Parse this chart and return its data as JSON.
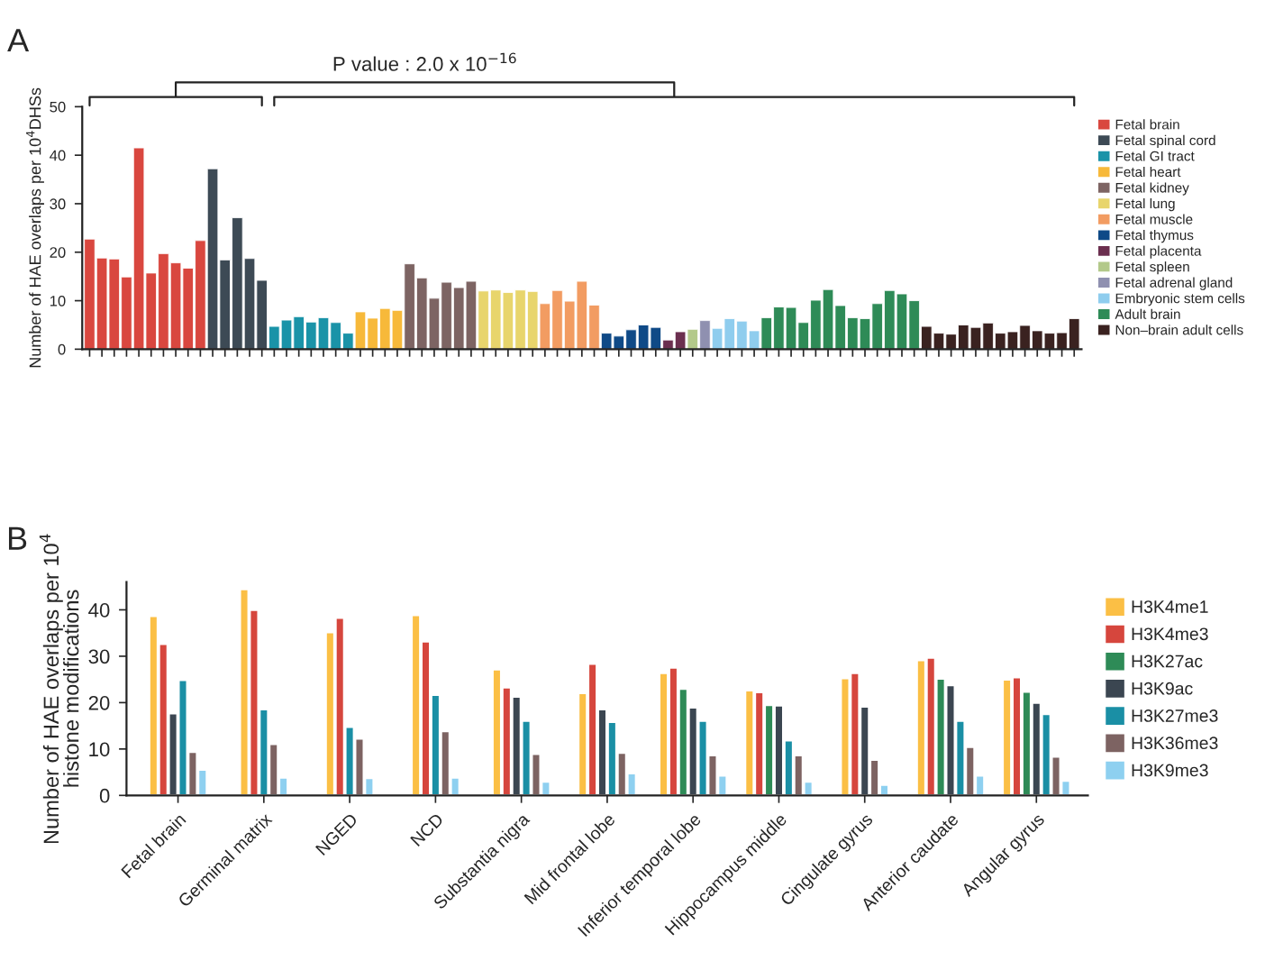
{
  "chart_data": [
    {
      "type": "bar",
      "stacked": true,
      "ylabel": "Number of HAE overlaps per 10$^{4}$DHSs",
      "ylim": [
        0,
        50
      ],
      "yticks": [
        0,
        10,
        20,
        30,
        40,
        50
      ],
      "legend": "right",
      "annotations": [
        "A",
        "P value : 2.0 x 10$^{−16}$"
      ],
      "categories": [
        null,
        null,
        null,
        null,
        null,
        null,
        null,
        null,
        null,
        null,
        null,
        null,
        null,
        null,
        null,
        null,
        null,
        null,
        null,
        null,
        null,
        null,
        null,
        null,
        null,
        null,
        null,
        null,
        null,
        null,
        null,
        null,
        null,
        null,
        null,
        null,
        null,
        null,
        null,
        null,
        null,
        null,
        null,
        null,
        null,
        null,
        null,
        null,
        null,
        null,
        null,
        null,
        null,
        null,
        null,
        null,
        null,
        null,
        null,
        null,
        null,
        null,
        null,
        null,
        null,
        null,
        null,
        null,
        null,
        null,
        null,
        null,
        null,
        null,
        null,
        null,
        null,
        null,
        null,
        null,
        null
      ],
      "series": [
        {
          "name": "Fetal brain",
          "color": "#d9473f",
          "values": [
            22.7,
            18.8,
            18.6,
            14.9,
            41.5,
            15.7,
            19.7,
            17.8,
            16.7,
            22.4,
            null,
            null,
            null,
            null,
            null,
            null,
            null,
            null,
            null,
            null,
            null,
            null,
            null,
            null,
            null,
            null,
            null,
            null,
            null,
            null,
            null,
            null,
            null,
            null,
            null,
            null,
            null,
            null,
            null,
            null,
            null,
            null,
            null,
            null,
            null,
            null,
            null,
            null,
            null,
            null,
            null,
            null,
            null,
            null,
            null,
            null,
            null,
            null,
            null,
            null,
            null,
            null,
            null,
            null,
            null,
            null,
            null,
            null,
            null,
            null,
            null,
            null,
            null,
            null,
            null,
            null,
            null,
            null,
            null,
            null,
            null
          ]
        },
        {
          "name": "Fetal spinal cord",
          "color": "#3d4a55",
          "values": [
            null,
            null,
            null,
            null,
            null,
            null,
            null,
            null,
            null,
            null,
            37.2,
            18.4,
            27.1,
            18.7,
            14.2,
            null,
            null,
            null,
            null,
            null,
            null,
            null,
            null,
            null,
            null,
            null,
            null,
            null,
            null,
            null,
            null,
            null,
            null,
            null,
            null,
            null,
            null,
            null,
            null,
            null,
            null,
            null,
            null,
            null,
            null,
            null,
            null,
            null,
            null,
            null,
            null,
            null,
            null,
            null,
            null,
            null,
            null,
            null,
            null,
            null,
            null,
            null,
            null,
            null,
            null,
            null,
            null,
            null,
            null,
            null,
            null,
            null,
            null,
            null,
            null,
            null,
            null,
            null,
            null,
            null,
            null
          ]
        },
        {
          "name": "Fetal GI tract",
          "color": "#1a93a8",
          "values": [
            null,
            null,
            null,
            null,
            null,
            null,
            null,
            null,
            null,
            null,
            null,
            null,
            null,
            null,
            null,
            4.7,
            6.0,
            6.7,
            5.6,
            6.5,
            5.5,
            3.3,
            null,
            null,
            null,
            null,
            null,
            null,
            null,
            null,
            null,
            null,
            null,
            null,
            null,
            null,
            null,
            null,
            null,
            null,
            null,
            null,
            null,
            null,
            null,
            null,
            null,
            null,
            null,
            null,
            null,
            null,
            null,
            null,
            null,
            null,
            null,
            null,
            null,
            null,
            null,
            null,
            null,
            null,
            null,
            null,
            null,
            null,
            null,
            null,
            null,
            null,
            null,
            null,
            null,
            null,
            null,
            null,
            null,
            null,
            null
          ]
        },
        {
          "name": "Fetal heart",
          "color": "#f7b93a",
          "values": [
            null,
            null,
            null,
            null,
            null,
            null,
            null,
            null,
            null,
            null,
            null,
            null,
            null,
            null,
            null,
            null,
            null,
            null,
            null,
            null,
            null,
            null,
            7.7,
            6.4,
            8.4,
            8.0,
            null,
            null,
            null,
            null,
            null,
            null,
            null,
            null,
            null,
            null,
            null,
            null,
            null,
            null,
            null,
            null,
            null,
            null,
            null,
            null,
            null,
            null,
            null,
            null,
            null,
            null,
            null,
            null,
            null,
            null,
            null,
            null,
            null,
            null,
            null,
            null,
            null,
            null,
            null,
            null,
            null,
            null,
            null,
            null,
            null,
            null,
            null,
            null,
            null,
            null,
            null,
            null,
            null,
            null,
            null
          ]
        },
        {
          "name": "Fetal kidney",
          "color": "#7d6463",
          "values": [
            null,
            null,
            null,
            null,
            null,
            null,
            null,
            null,
            null,
            null,
            null,
            null,
            null,
            null,
            null,
            null,
            null,
            null,
            null,
            null,
            null,
            null,
            null,
            null,
            null,
            null,
            17.6,
            14.7,
            10.5,
            13.8,
            12.7,
            14.0,
            null,
            null,
            null,
            null,
            null,
            null,
            null,
            null,
            null,
            null,
            null,
            null,
            null,
            null,
            null,
            null,
            null,
            null,
            null,
            null,
            null,
            null,
            null,
            null,
            null,
            null,
            null,
            null,
            null,
            null,
            null,
            null,
            null,
            null,
            null,
            null,
            null,
            null,
            null,
            null,
            null,
            null,
            null,
            null,
            null,
            null,
            null,
            null,
            null
          ]
        },
        {
          "name": "Fetal lung",
          "color": "#e8d56c",
          "values": [
            null,
            null,
            null,
            null,
            null,
            null,
            null,
            null,
            null,
            null,
            null,
            null,
            null,
            null,
            null,
            null,
            null,
            null,
            null,
            null,
            null,
            null,
            null,
            null,
            null,
            null,
            null,
            null,
            null,
            null,
            null,
            null,
            12.0,
            12.2,
            11.7,
            12.2,
            11.9,
            null,
            null,
            null,
            null,
            null,
            null,
            null,
            null,
            null,
            null,
            null,
            null,
            null,
            null,
            null,
            null,
            null,
            null,
            null,
            null,
            null,
            null,
            null,
            null,
            null,
            null,
            null,
            null,
            null,
            null,
            null,
            null,
            null,
            null,
            null,
            null,
            null,
            null,
            null,
            null,
            null,
            null,
            null,
            null
          ]
        },
        {
          "name": "Fetal muscle",
          "color": "#f29c62",
          "values": [
            null,
            null,
            null,
            null,
            null,
            null,
            null,
            null,
            null,
            null,
            null,
            null,
            null,
            null,
            null,
            null,
            null,
            null,
            null,
            null,
            null,
            null,
            null,
            null,
            null,
            null,
            null,
            null,
            null,
            null,
            null,
            null,
            null,
            null,
            null,
            null,
            null,
            9.4,
            12.1,
            9.9,
            14.0,
            9.1,
            null,
            null,
            null,
            null,
            null,
            null,
            null,
            null,
            null,
            null,
            null,
            null,
            null,
            null,
            null,
            null,
            null,
            null,
            null,
            null,
            null,
            null,
            null,
            null,
            null,
            null,
            null,
            null,
            null,
            null,
            null,
            null,
            null,
            null,
            null,
            null,
            null,
            null,
            null
          ]
        },
        {
          "name": "Fetal thymus",
          "color": "#0f4a87",
          "values": [
            null,
            null,
            null,
            null,
            null,
            null,
            null,
            null,
            null,
            null,
            null,
            null,
            null,
            null,
            null,
            null,
            null,
            null,
            null,
            null,
            null,
            null,
            null,
            null,
            null,
            null,
            null,
            null,
            null,
            null,
            null,
            null,
            null,
            null,
            null,
            null,
            null,
            null,
            null,
            null,
            null,
            null,
            3.3,
            2.7,
            4.0,
            5.0,
            4.5,
            null,
            null,
            null,
            null,
            null,
            null,
            null,
            null,
            null,
            null,
            null,
            null,
            null,
            null,
            null,
            null,
            null,
            null,
            null,
            null,
            null,
            null,
            null,
            null,
            null,
            null,
            null,
            null,
            null,
            null,
            null,
            null,
            null,
            null
          ]
        },
        {
          "name": "Fetal placenta",
          "color": "#6b2f4f",
          "values": [
            null,
            null,
            null,
            null,
            null,
            null,
            null,
            null,
            null,
            null,
            null,
            null,
            null,
            null,
            null,
            null,
            null,
            null,
            null,
            null,
            null,
            null,
            null,
            null,
            null,
            null,
            null,
            null,
            null,
            null,
            null,
            null,
            null,
            null,
            null,
            null,
            null,
            null,
            null,
            null,
            null,
            null,
            null,
            null,
            null,
            null,
            null,
            1.9,
            3.6,
            null,
            null,
            null,
            null,
            null,
            null,
            null,
            null,
            null,
            null,
            null,
            null,
            null,
            null,
            null,
            null,
            null,
            null,
            null,
            null,
            null,
            null,
            null,
            null,
            null,
            null,
            null,
            null,
            null,
            null,
            null,
            null
          ]
        },
        {
          "name": "Fetal spleen",
          "color": "#b3c98a",
          "values": [
            null,
            null,
            null,
            null,
            null,
            null,
            null,
            null,
            null,
            null,
            null,
            null,
            null,
            null,
            null,
            null,
            null,
            null,
            null,
            null,
            null,
            null,
            null,
            null,
            null,
            null,
            null,
            null,
            null,
            null,
            null,
            null,
            null,
            null,
            null,
            null,
            null,
            null,
            null,
            null,
            null,
            null,
            null,
            null,
            null,
            null,
            null,
            null,
            null,
            4.1,
            null,
            null,
            null,
            null,
            null,
            null,
            null,
            null,
            null,
            null,
            null,
            null,
            null,
            null,
            null,
            null,
            null,
            null,
            null,
            null,
            null,
            null,
            null,
            null,
            null,
            null,
            null,
            null,
            null,
            null,
            null
          ]
        },
        {
          "name": "Fetal adrenal gland",
          "color": "#8f90b0",
          "values": [
            null,
            null,
            null,
            null,
            null,
            null,
            null,
            null,
            null,
            null,
            null,
            null,
            null,
            null,
            null,
            null,
            null,
            null,
            null,
            null,
            null,
            null,
            null,
            null,
            null,
            null,
            null,
            null,
            null,
            null,
            null,
            null,
            null,
            null,
            null,
            null,
            null,
            null,
            null,
            null,
            null,
            null,
            null,
            null,
            null,
            null,
            null,
            null,
            null,
            null,
            5.9,
            null,
            null,
            null,
            null,
            null,
            null,
            null,
            null,
            null,
            null,
            null,
            null,
            null,
            null,
            null,
            null,
            null,
            null,
            null,
            null,
            null,
            null,
            null,
            null,
            null,
            null,
            null,
            null,
            null,
            null
          ]
        },
        {
          "name": "Embryonic stem cells",
          "color": "#8fcdee",
          "values": [
            null,
            null,
            null,
            null,
            null,
            null,
            null,
            null,
            null,
            null,
            null,
            null,
            null,
            null,
            null,
            null,
            null,
            null,
            null,
            null,
            null,
            null,
            null,
            null,
            null,
            null,
            null,
            null,
            null,
            null,
            null,
            null,
            null,
            null,
            null,
            null,
            null,
            null,
            null,
            null,
            null,
            null,
            null,
            null,
            null,
            null,
            null,
            null,
            null,
            null,
            null,
            4.3,
            6.3,
            5.8,
            3.8,
            null,
            null,
            null,
            null,
            null,
            null,
            null,
            null,
            null,
            null,
            null,
            null,
            null,
            null,
            null,
            null,
            null,
            null,
            null,
            null,
            null,
            null,
            null,
            null,
            null,
            null
          ]
        },
        {
          "name": "Adult brain",
          "color": "#2e8b57",
          "values": [
            null,
            null,
            null,
            null,
            null,
            null,
            null,
            null,
            null,
            null,
            null,
            null,
            null,
            null,
            null,
            null,
            null,
            null,
            null,
            null,
            null,
            null,
            null,
            null,
            null,
            null,
            null,
            null,
            null,
            null,
            null,
            null,
            null,
            null,
            null,
            null,
            null,
            null,
            null,
            null,
            null,
            null,
            null,
            null,
            null,
            null,
            null,
            null,
            null,
            null,
            null,
            null,
            null,
            null,
            null,
            6.5,
            8.7,
            8.6,
            5.5,
            10.1,
            12.3,
            9.0,
            6.5,
            6.3,
            9.4,
            12.1,
            11.4,
            10.0,
            null,
            null,
            null,
            null,
            null,
            null,
            null,
            null,
            null,
            null,
            null,
            null,
            null
          ]
        },
        {
          "name": "Non–brain adult cells",
          "color": "#3a2220",
          "values": [
            null,
            null,
            null,
            null,
            null,
            null,
            null,
            null,
            null,
            null,
            null,
            null,
            null,
            null,
            null,
            null,
            null,
            null,
            null,
            null,
            null,
            null,
            null,
            null,
            null,
            null,
            null,
            null,
            null,
            null,
            null,
            null,
            null,
            null,
            null,
            null,
            null,
            null,
            null,
            null,
            null,
            null,
            null,
            null,
            null,
            null,
            null,
            null,
            null,
            null,
            null,
            null,
            null,
            null,
            null,
            null,
            null,
            null,
            null,
            null,
            null,
            null,
            null,
            null,
            null,
            null,
            null,
            null,
            4.7,
            3.3,
            3.1,
            5.0,
            4.5,
            5.4,
            3.3,
            3.6,
            4.9,
            3.8,
            3.3,
            3.4,
            6.3
          ]
        }
      ]
    },
    {
      "type": "bar",
      "ylabel": "Number of HAE overlaps per 10$^{4}$\nhistone modifications",
      "ylim": [
        0,
        46
      ],
      "yticks": [
        0,
        10,
        20,
        30,
        40
      ],
      "legend": "right",
      "annotations": [
        "B"
      ],
      "categories": [
        "Fetal brain",
        "Germinal matrix",
        "NGED",
        "NCD",
        "Substantia nigra",
        "Mid frontal lobe",
        "Inferior temporal lobe",
        "Hippocampus middle",
        "Cingulate gyrus",
        "Anterior caudate",
        "Angular gyrus"
      ],
      "series": [
        {
          "name": "H3K4me1",
          "color": "#fbbf45",
          "values": [
            38.7,
            44.5,
            35.2,
            38.9,
            27.2,
            22.1,
            26.4,
            22.7,
            25.3,
            29.2,
            25.0
          ]
        },
        {
          "name": "H3K4me3",
          "color": "#d6463d",
          "values": [
            32.7,
            40.0,
            38.3,
            33.2,
            23.3,
            28.4,
            27.6,
            22.3,
            26.4,
            29.7,
            25.5
          ]
        },
        {
          "name": "H3K27ac",
          "color": "#2e8b57",
          "values": [
            null,
            null,
            null,
            null,
            null,
            null,
            23.0,
            19.5,
            null,
            25.2,
            22.4
          ]
        },
        {
          "name": "H3K9ac",
          "color": "#3b4651",
          "values": [
            17.7,
            null,
            null,
            null,
            21.3,
            18.6,
            19.0,
            19.4,
            19.2,
            23.8,
            20.0
          ]
        },
        {
          "name": "H3K27me3",
          "color": "#1a8fa5",
          "values": [
            24.9,
            18.6,
            14.8,
            21.7,
            16.1,
            15.9,
            16.1,
            11.9,
            null,
            16.1,
            17.6
          ]
        },
        {
          "name": "H3K36me3",
          "color": "#7d6362",
          "values": [
            9.4,
            11.1,
            12.3,
            13.9,
            9.0,
            9.2,
            8.7,
            8.7,
            7.7,
            10.5,
            8.4
          ]
        },
        {
          "name": "H3K9me3",
          "color": "#8ed0f0",
          "values": [
            5.6,
            3.9,
            3.8,
            3.9,
            3.0,
            4.8,
            4.3,
            3.0,
            2.3,
            4.3,
            3.2
          ]
        }
      ]
    }
  ]
}
